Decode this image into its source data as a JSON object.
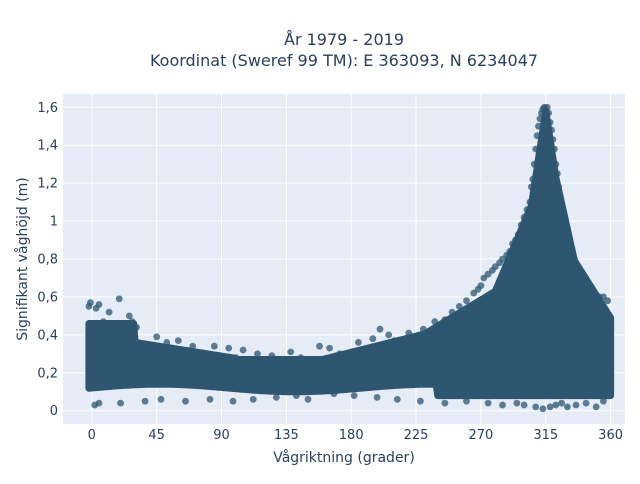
{
  "chart_data": {
    "type": "scatter",
    "title_line1": "År 1979 - 2019",
    "title_line2": "Koordinat (Sweref 99 TM): E 363093, N 6234047",
    "xlabel": "Vågriktning (grader)",
    "ylabel": "Signifikant våghöjd (m)",
    "xlim": [
      -20,
      370
    ],
    "ylim": [
      -0.07,
      1.67
    ],
    "xticks": [
      0,
      45,
      90,
      135,
      180,
      225,
      270,
      315,
      360
    ],
    "xtick_labels": [
      "0",
      "45",
      "90",
      "135",
      "180",
      "225",
      "270",
      "315",
      "360"
    ],
    "yticks": [
      0,
      0.2,
      0.4,
      0.6,
      0.8,
      1.0,
      1.2,
      1.4,
      1.6
    ],
    "ytick_labels": [
      "0",
      "0,2",
      "0,4",
      "0,6",
      "0,8",
      "1",
      "1,2",
      "1,4",
      "1,6"
    ],
    "grid": true,
    "legend": "none",
    "marker_color": "#2e5670",
    "background_color": "#e5ecf6",
    "series": [
      {
        "values": [
          [
            -2,
            0.55
          ],
          [
            -1,
            0.57
          ],
          [
            3,
            0.54
          ],
          [
            5,
            0.56
          ],
          [
            8,
            0.47
          ],
          [
            12,
            0.52
          ],
          [
            20,
            0.46
          ],
          [
            23,
            0.45
          ],
          [
            19,
            0.59
          ],
          [
            16,
            0.42
          ],
          [
            26,
            0.5
          ],
          [
            28,
            0.47
          ],
          [
            31,
            0.44
          ],
          [
            29,
            0.4
          ],
          [
            45,
            0.39
          ],
          [
            52,
            0.36
          ],
          [
            60,
            0.37
          ],
          [
            70,
            0.34
          ],
          [
            85,
            0.34
          ],
          [
            95,
            0.33
          ],
          [
            105,
            0.32
          ],
          [
            115,
            0.3
          ],
          [
            125,
            0.29
          ],
          [
            138,
            0.31
          ],
          [
            145,
            0.28
          ],
          [
            158,
            0.34
          ],
          [
            165,
            0.33
          ],
          [
            172,
            0.3
          ],
          [
            185,
            0.36
          ],
          [
            195,
            0.38
          ],
          [
            200,
            0.43
          ],
          [
            206,
            0.4
          ],
          [
            210,
            0.37
          ],
          [
            220,
            0.41
          ],
          [
            230,
            0.43
          ],
          [
            238,
            0.47
          ],
          [
            245,
            0.48
          ],
          [
            250,
            0.52
          ],
          [
            255,
            0.55
          ],
          [
            260,
            0.58
          ],
          [
            265,
            0.62
          ],
          [
            268,
            0.64
          ],
          [
            270,
            0.66
          ],
          [
            272,
            0.7
          ],
          [
            275,
            0.72
          ],
          [
            278,
            0.74
          ],
          [
            280,
            0.76
          ],
          [
            283,
            0.78
          ],
          [
            285,
            0.8
          ],
          [
            288,
            0.82
          ],
          [
            290,
            0.84
          ],
          [
            292,
            0.88
          ],
          [
            294,
            0.9
          ],
          [
            296,
            0.93
          ],
          [
            298,
            0.98
          ],
          [
            300,
            1.02
          ],
          [
            302,
            1.06
          ],
          [
            304,
            1.1
          ],
          [
            305,
            1.18
          ],
          [
            306,
            1.22
          ],
          [
            307,
            1.3
          ],
          [
            308,
            1.38
          ],
          [
            309,
            1.45
          ],
          [
            310,
            1.5
          ],
          [
            311,
            1.54
          ],
          [
            312,
            1.57
          ],
          [
            313,
            1.59
          ],
          [
            314,
            1.6
          ],
          [
            315,
            1.58
          ],
          [
            316,
            1.6
          ],
          [
            317,
            1.57
          ],
          [
            318,
            1.52
          ],
          [
            319,
            1.48
          ],
          [
            320,
            1.43
          ],
          [
            321,
            1.38
          ],
          [
            322,
            1.3
          ],
          [
            323,
            1.25
          ],
          [
            324,
            1.18
          ],
          [
            325,
            1.12
          ],
          [
            326,
            1.04
          ],
          [
            327,
            0.98
          ],
          [
            328,
            0.93
          ],
          [
            330,
            0.88
          ],
          [
            332,
            0.82
          ],
          [
            334,
            0.78
          ],
          [
            336,
            0.74
          ],
          [
            338,
            0.72
          ],
          [
            340,
            0.68
          ],
          [
            343,
            0.64
          ],
          [
            346,
            0.62
          ],
          [
            349,
            0.61
          ],
          [
            352,
            0.6
          ],
          [
            355,
            0.6
          ],
          [
            358,
            0.58
          ],
          [
            346,
            0.56
          ],
          [
            351,
            0.55
          ],
          [
            2,
            0.03
          ],
          [
            5,
            0.04
          ],
          [
            20,
            0.04
          ],
          [
            37,
            0.05
          ],
          [
            48,
            0.06
          ],
          [
            65,
            0.05
          ],
          [
            82,
            0.06
          ],
          [
            98,
            0.05
          ],
          [
            112,
            0.06
          ],
          [
            128,
            0.07
          ],
          [
            142,
            0.08
          ],
          [
            150,
            0.06
          ],
          [
            168,
            0.09
          ],
          [
            182,
            0.08
          ],
          [
            198,
            0.07
          ],
          [
            212,
            0.06
          ],
          [
            228,
            0.05
          ],
          [
            245,
            0.04
          ],
          [
            260,
            0.05
          ],
          [
            275,
            0.04
          ],
          [
            285,
            0.03
          ],
          [
            295,
            0.04
          ],
          [
            300,
            0.03
          ],
          [
            308,
            0.02
          ],
          [
            313,
            0.01
          ],
          [
            318,
            0.02
          ],
          [
            322,
            0.03
          ],
          [
            326,
            0.04
          ],
          [
            330,
            0.02
          ],
          [
            336,
            0.03
          ],
          [
            343,
            0.04
          ],
          [
            350,
            0.02
          ],
          [
            355,
            0.05
          ],
          [
            310,
            0.25
          ],
          [
            320,
            0.28
          ],
          [
            330,
            0.31
          ],
          [
            315,
            0.35
          ],
          [
            312,
            0.42
          ],
          [
            318,
            0.45
          ],
          [
            325,
            0.4
          ],
          [
            300,
            0.35
          ],
          [
            290,
            0.3
          ],
          [
            280,
            0.28
          ],
          [
            265,
            0.26
          ],
          [
            250,
            0.24
          ],
          [
            240,
            0.22
          ],
          [
            230,
            0.2
          ],
          [
            215,
            0.2
          ],
          [
            200,
            0.19
          ],
          [
            185,
            0.18
          ],
          [
            170,
            0.17
          ],
          [
            155,
            0.16
          ],
          [
            140,
            0.17
          ],
          [
            125,
            0.18
          ],
          [
            110,
            0.19
          ],
          [
            95,
            0.2
          ],
          [
            80,
            0.21
          ],
          [
            65,
            0.22
          ],
          [
            50,
            0.23
          ],
          [
            35,
            0.24
          ],
          [
            20,
            0.25
          ],
          [
            10,
            0.26
          ],
          [
            0,
            0.27
          ],
          [
            358,
            0.27
          ],
          [
            345,
            0.3
          ],
          [
            335,
            0.33
          ],
          [
            305,
            0.45
          ],
          [
            295,
            0.5
          ],
          [
            285,
            0.48
          ],
          [
            270,
            0.4
          ],
          [
            258,
            0.36
          ],
          [
            242,
            0.33
          ],
          [
            236,
            0.29
          ],
          [
            224,
            0.28
          ],
          [
            208,
            0.26
          ],
          [
            193,
            0.25
          ],
          [
            177,
            0.22
          ],
          [
            162,
            0.21
          ],
          [
            148,
            0.2
          ],
          [
            132,
            0.21
          ],
          [
            118,
            0.23
          ],
          [
            102,
            0.24
          ],
          [
            88,
            0.25
          ],
          [
            72,
            0.26
          ],
          [
            58,
            0.27
          ],
          [
            43,
            0.29
          ],
          [
            27,
            0.31
          ],
          [
            14,
            0.32
          ],
          [
            4,
            0.33
          ],
          [
            356,
            0.35
          ],
          [
            341,
            0.38
          ],
          [
            327,
            0.44
          ],
          [
            316,
            0.52
          ],
          [
            309,
            0.6
          ],
          [
            303,
            0.65
          ],
          [
            297,
            0.62
          ],
          [
            289,
            0.58
          ],
          [
            276,
            0.52
          ],
          [
            263,
            0.46
          ],
          [
            252,
            0.42
          ],
          [
            246,
            0.38
          ],
          [
            233,
            0.35
          ],
          [
            219,
            0.33
          ],
          [
            204,
            0.31
          ],
          [
            190,
            0.29
          ],
          [
            175,
            0.27
          ],
          [
            160,
            0.25
          ],
          [
            146,
            0.24
          ],
          [
            130,
            0.25
          ],
          [
            116,
            0.27
          ],
          [
            100,
            0.28
          ],
          [
            86,
            0.29
          ],
          [
            74,
            0.3
          ],
          [
            60,
            0.31
          ],
          [
            46,
            0.32
          ],
          [
            32,
            0.34
          ],
          [
            18,
            0.36
          ],
          [
            8,
            0.38
          ],
          [
            1,
            0.4
          ],
          [
            359,
            0.42
          ]
        ]
      }
    ]
  }
}
